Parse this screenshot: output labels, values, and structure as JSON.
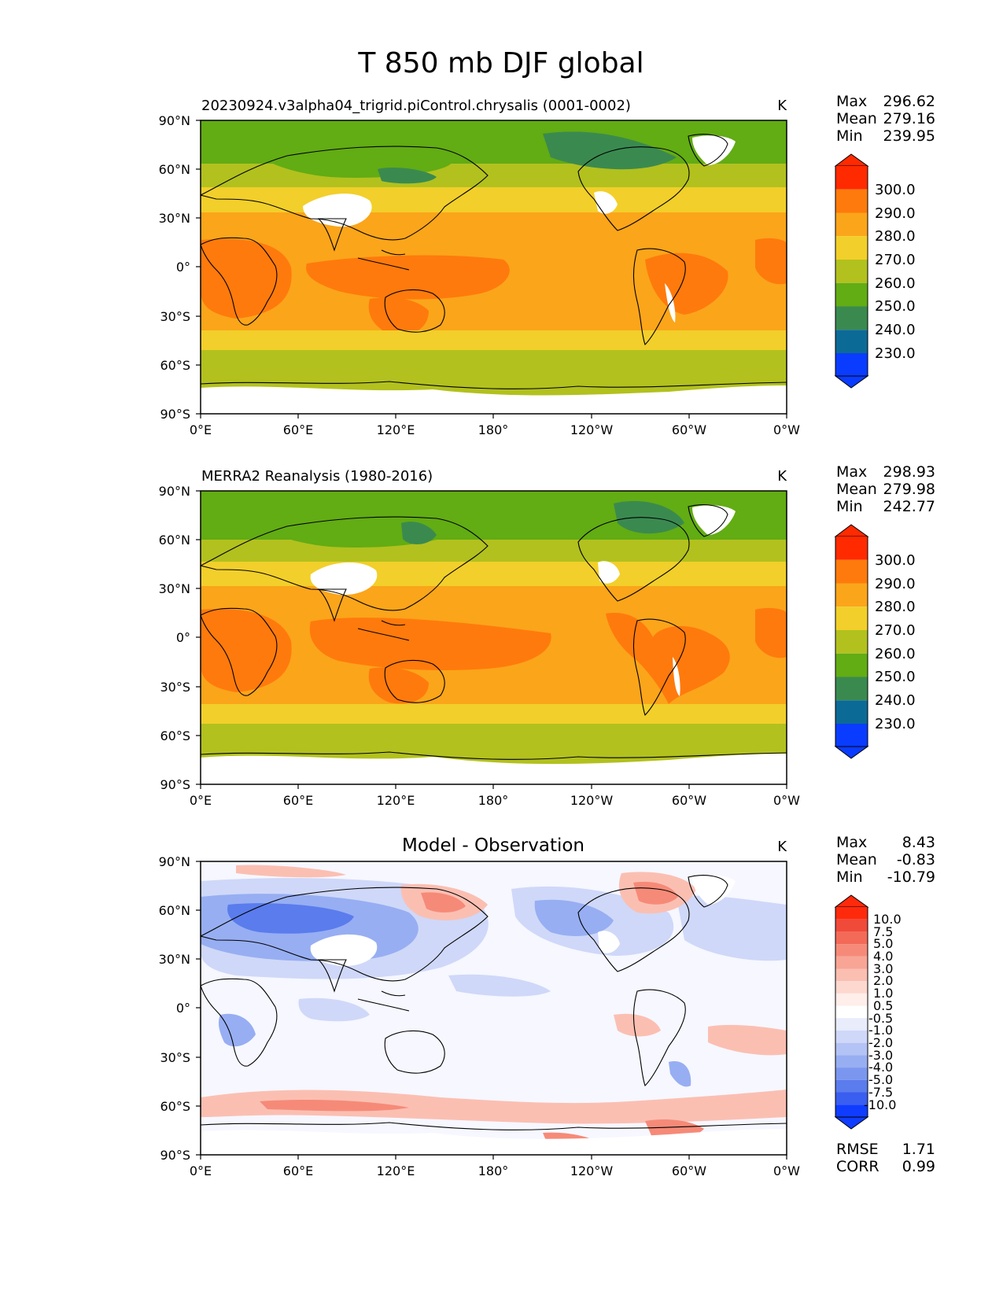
{
  "title": "T 850 mb DJF global",
  "units": "K",
  "x_ticks": [
    "0°E",
    "60°E",
    "120°E",
    "180°",
    "120°W",
    "60°W",
    "0°W"
  ],
  "y_ticks": [
    "90°N",
    "60°N",
    "30°N",
    "0°",
    "30°S",
    "60°S",
    "90°S"
  ],
  "panels": [
    {
      "subtitle": "20230924.v3alpha04_trigrid.piControl.chrysalis (0001-0002)",
      "stats": [
        {
          "label": "Max",
          "value": "296.62"
        },
        {
          "label": "Mean",
          "value": "279.16"
        },
        {
          "label": "Min",
          "value": "239.95"
        }
      ]
    },
    {
      "subtitle": "MERRA2 Reanalysis (1980-2016)",
      "stats": [
        {
          "label": "Max",
          "value": "298.93"
        },
        {
          "label": "Mean",
          "value": "279.98"
        },
        {
          "label": "Min",
          "value": "242.77"
        }
      ]
    },
    {
      "subtitle": "Model - Observation",
      "stats": [
        {
          "label": "Max",
          "value": "8.43"
        },
        {
          "label": "Mean",
          "value": "-0.83"
        },
        {
          "label": "Min",
          "value": "-10.79"
        }
      ],
      "metrics": [
        {
          "label": "RMSE",
          "value": "1.71"
        },
        {
          "label": "CORR",
          "value": "0.99"
        }
      ]
    }
  ],
  "field_colorbar": {
    "labels": [
      "300.0",
      "290.0",
      "280.0",
      "270.0",
      "260.0",
      "250.0",
      "240.0",
      "230.0"
    ],
    "colors": [
      "#ff2a00",
      "#ff7a0c",
      "#fba51a",
      "#f2cf2a",
      "#b2c11e",
      "#62ac14",
      "#3a8a50",
      "#0c6a96",
      "#0a3cff"
    ]
  },
  "diff_colorbar": {
    "labels": [
      "10.0",
      "7.5",
      "5.0",
      "4.0",
      "3.0",
      "2.0",
      "1.0",
      "0.5",
      "-0.5",
      "-1.0",
      "-2.0",
      "-3.0",
      "-4.0",
      "-5.0",
      "-7.5",
      "-10.0"
    ],
    "colors": [
      "#ff2a0c",
      "#f04a3a",
      "#f36a58",
      "#f68a78",
      "#f8a595",
      "#fbbfb2",
      "#fdd8cf",
      "#ffeeea",
      "#ffffff",
      "#e8ecfb",
      "#cfd8f8",
      "#b4c3f5",
      "#97aef2",
      "#7a96ef",
      "#5a7ced",
      "#3a5ef0",
      "#0f3cff"
    ]
  },
  "map_colors": {
    "white": "#ffffff",
    "hot": "#ff7a0c",
    "warm": "#fba51a",
    "mild": "#f2cf2a",
    "cool": "#b2c11e",
    "cold": "#62ac14",
    "colder": "#3a8a50",
    "diff_neutral": "#f6f7ff",
    "diff_blue1": "#cfd8f8",
    "diff_blue2": "#97aef2",
    "diff_blue3": "#5a7ced",
    "diff_red1": "#fbbfb2",
    "diff_red2": "#f68a78"
  }
}
